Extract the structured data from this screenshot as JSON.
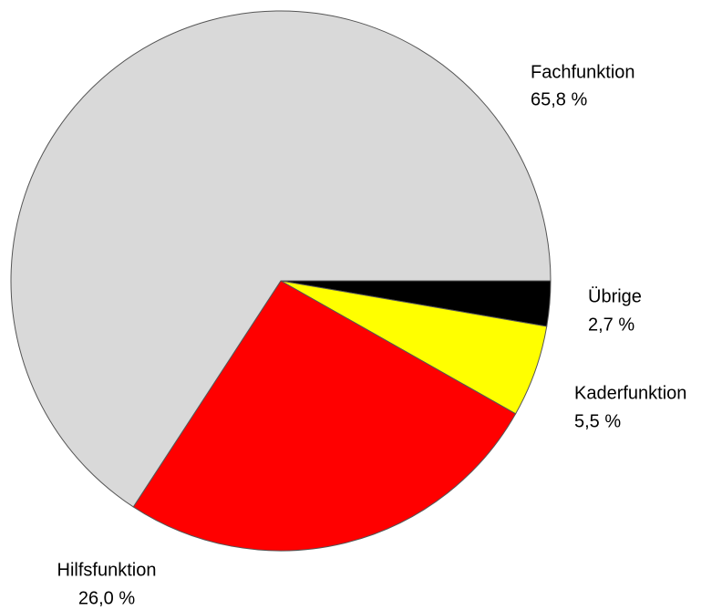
{
  "chart_data": {
    "type": "pie",
    "categories": [
      "Übrige",
      "Kaderfunktion",
      "Hilfsfunktion",
      "Fachfunktion"
    ],
    "values": [
      2.7,
      5.5,
      26.0,
      65.8
    ],
    "value_labels": [
      "2,7 %",
      "5,5 %",
      "26,0 %",
      "65,8 %"
    ],
    "colors": [
      "#000000",
      "#ffff00",
      "#ff0000",
      "#d9d9d9"
    ]
  }
}
